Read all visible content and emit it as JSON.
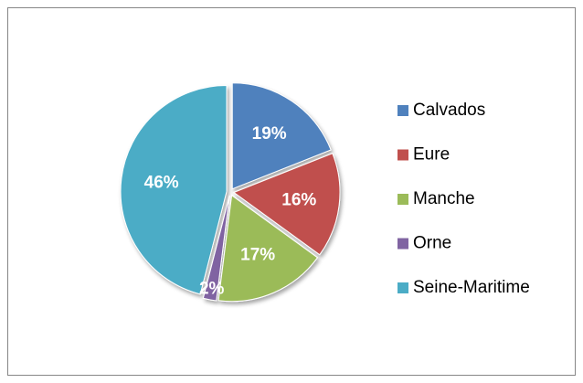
{
  "chart_data": {
    "type": "pie",
    "categories": [
      "Calvados",
      "Eure",
      "Manche",
      "Orne",
      "Seine-Maritime"
    ],
    "values": [
      19,
      16,
      17,
      2,
      46
    ],
    "value_labels": [
      "19%",
      "16%",
      "17%",
      "2%",
      "46%"
    ],
    "colors": [
      "#4f81bd",
      "#c0504d",
      "#9bbb59",
      "#8064a2",
      "#4bacc6"
    ],
    "legend": "right"
  }
}
